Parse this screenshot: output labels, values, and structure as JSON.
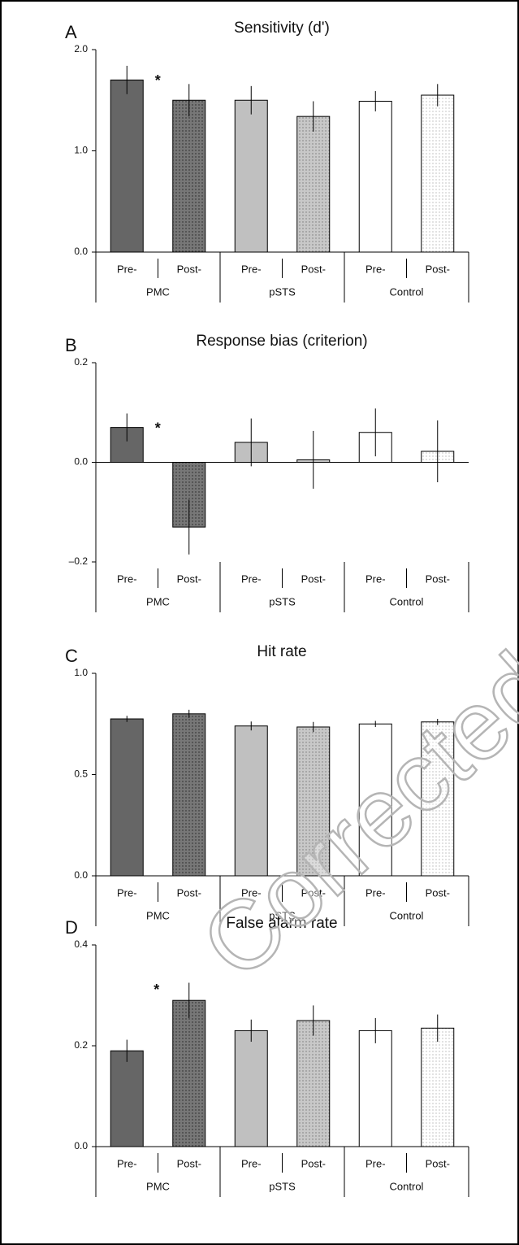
{
  "chart_data": [
    {
      "type": "bar",
      "panel": "A",
      "title": "Sensitivity (d')",
      "categories": [
        "Pre-",
        "Post-",
        "Pre-",
        "Post-",
        "Pre-",
        "Post-"
      ],
      "groups": [
        "PMC",
        "pSTS",
        "Control"
      ],
      "values": [
        1.7,
        1.5,
        1.5,
        1.34,
        1.49,
        1.55
      ],
      "errors": [
        0.14,
        0.16,
        0.14,
        0.15,
        0.1,
        0.11
      ],
      "colors": [
        "#666666",
        "url(#dotDark)",
        "#c0c0c0",
        "url(#dotLight)",
        "#ffffff",
        "url(#dotWhite)"
      ],
      "ylim": [
        0,
        2
      ],
      "yticks": [
        {
          "value": 0,
          "label": "0.0"
        },
        {
          "value": 1,
          "label": "1.0"
        },
        {
          "value": 2,
          "label": "2.0"
        }
      ],
      "annotations": [
        "*"
      ]
    },
    {
      "type": "bar",
      "panel": "B",
      "title": "Response bias (criterion)",
      "categories": [
        "Pre-",
        "Post-",
        "Pre-",
        "Post-",
        "Pre-",
        "Post-"
      ],
      "groups": [
        "PMC",
        "pSTS",
        "Control"
      ],
      "values": [
        0.07,
        -0.13,
        0.04,
        0.005,
        0.06,
        0.022
      ],
      "errors": [
        0.028,
        0.055,
        0.048,
        0.058,
        0.048,
        0.062
      ],
      "colors": [
        "#666666",
        "url(#dotDark)",
        "#c0c0c0",
        "url(#dotLight)",
        "#ffffff",
        "url(#dotWhite)"
      ],
      "ylim": [
        -0.2,
        0.2
      ],
      "yticks": [
        {
          "value": -0.2,
          "label": "–0.2"
        },
        {
          "value": 0,
          "label": "0.0"
        },
        {
          "value": 0.2,
          "label": "0.2"
        }
      ],
      "annotations": [
        "*"
      ]
    },
    {
      "type": "bar",
      "panel": "C",
      "title": "Hit rate",
      "categories": [
        "Pre-",
        "Post-",
        "Pre-",
        "Post-",
        "Pre-",
        "Post-"
      ],
      "groups": [
        "PMC",
        "pSTS",
        "Control"
      ],
      "values": [
        0.775,
        0.8,
        0.74,
        0.735,
        0.75,
        0.76
      ],
      "errors": [
        0.015,
        0.02,
        0.022,
        0.025,
        0.015,
        0.015
      ],
      "colors": [
        "#666666",
        "url(#dotDark)",
        "#c0c0c0",
        "url(#dotLight)",
        "#ffffff",
        "url(#dotWhite)"
      ],
      "ylim": [
        0,
        1
      ],
      "yticks": [
        {
          "value": 0,
          "label": "0.0"
        },
        {
          "value": 0.5,
          "label": "0.5"
        },
        {
          "value": 1,
          "label": "1.0"
        }
      ],
      "annotations": []
    },
    {
      "type": "bar",
      "panel": "D",
      "title": "False alarm rate",
      "categories": [
        "Pre-",
        "Post-",
        "Pre-",
        "Post-",
        "Pre-",
        "Post-"
      ],
      "groups": [
        "PMC",
        "pSTS",
        "Control"
      ],
      "values": [
        0.19,
        0.29,
        0.23,
        0.25,
        0.23,
        0.235
      ],
      "errors": [
        0.022,
        0.035,
        0.022,
        0.03,
        0.025,
        0.027
      ],
      "colors": [
        "#666666",
        "url(#dotDark)",
        "#c0c0c0",
        "url(#dotLight)",
        "#ffffff",
        "url(#dotWhite)"
      ],
      "ylim": [
        0,
        0.4
      ],
      "yticks": [
        {
          "value": 0,
          "label": "0.0"
        },
        {
          "value": 0.2,
          "label": "0.2"
        },
        {
          "value": 0.4,
          "label": "0.4"
        }
      ],
      "annotations": [
        "*"
      ]
    }
  ],
  "watermark": "Corrected"
}
